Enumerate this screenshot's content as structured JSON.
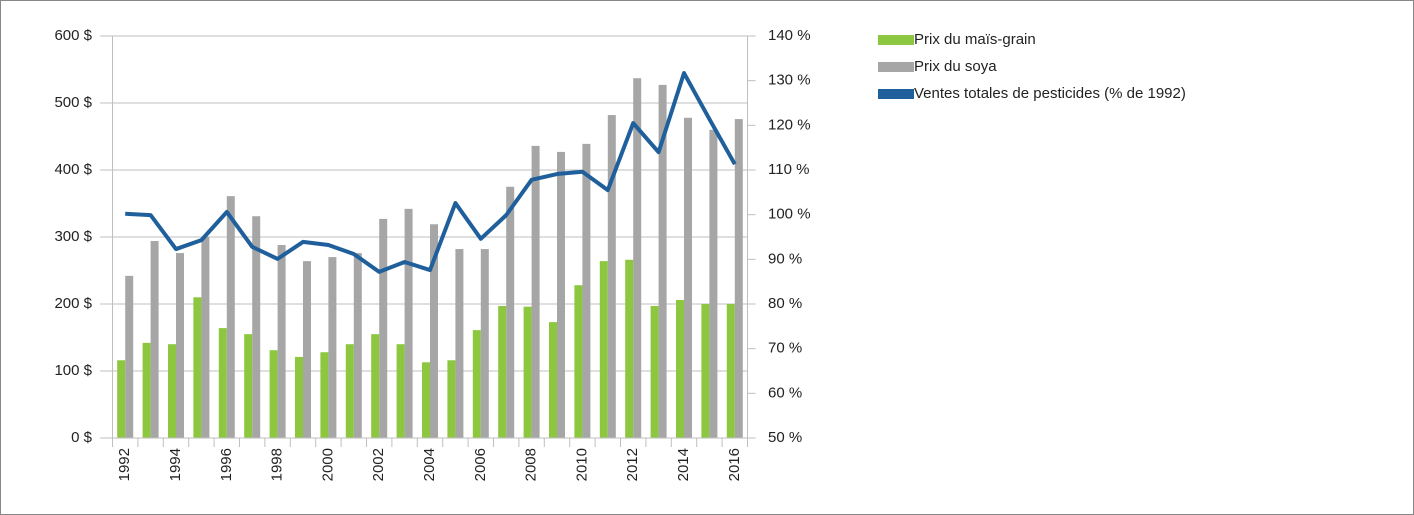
{
  "chart_data": {
    "type": "bar",
    "categories": [
      "1992",
      null,
      "1994",
      null,
      "1996",
      null,
      "1998",
      null,
      "2000",
      null,
      "2002",
      null,
      "2004",
      null,
      "2006",
      null,
      "2008",
      null,
      "2010",
      null,
      "2012",
      null,
      "2014",
      null,
      "2016"
    ],
    "series": [
      {
        "name": "Prix du maïs-grain",
        "color": "#8dc63f",
        "type": "bar",
        "values": [
          116,
          142,
          140,
          210,
          164,
          155,
          131,
          121,
          128,
          140,
          155,
          140,
          113,
          116,
          161,
          197,
          196,
          173,
          228,
          264,
          266,
          197,
          206,
          200,
          200
        ]
      },
      {
        "name": "Prix du soya",
        "color": "#a6a6a6",
        "type": "bar",
        "values": [
          242,
          294,
          276,
          300,
          361,
          331,
          288,
          264,
          270,
          276,
          327,
          342,
          319,
          282,
          282,
          375,
          436,
          427,
          439,
          482,
          537,
          527,
          478,
          460,
          476
        ]
      },
      {
        "name": "Ventes totales de pesticides (% de 1992)",
        "color": "#1f5f9b",
        "type": "line",
        "axis": "y2",
        "values": [
          100.2,
          99.9,
          92.3,
          94.3,
          100.6,
          92.8,
          90.1,
          93.9,
          93.2,
          91.2,
          87.2,
          89.4,
          87.6,
          102.6,
          94.6,
          99.9,
          107.8,
          109.1,
          109.6,
          105.5,
          120.5,
          114.0,
          131.7,
          121.4,
          111.3
        ]
      }
    ],
    "ylim": [
      0,
      600
    ],
    "yticks": [
      {
        "value": 0,
        "label": "0 $"
      },
      {
        "value": 100,
        "label": "100 $"
      },
      {
        "value": 200,
        "label": "200 $"
      },
      {
        "value": 300,
        "label": "300 $"
      },
      {
        "value": 400,
        "label": "400 $"
      },
      {
        "value": 500,
        "label": "500 $"
      },
      {
        "value": 600,
        "label": "600 $"
      }
    ],
    "y2lim": [
      50,
      140
    ],
    "y2ticks": [
      {
        "value": 50,
        "label": "50 %"
      },
      {
        "value": 60,
        "label": "60 %"
      },
      {
        "value": 70,
        "label": "70 %"
      },
      {
        "value": 80,
        "label": "80 %"
      },
      {
        "value": 90,
        "label": "90 %"
      },
      {
        "value": 100,
        "label": "100 %"
      },
      {
        "value": 110,
        "label": "110 %"
      },
      {
        "value": 120,
        "label": "120 %"
      },
      {
        "value": 130,
        "label": "130 %"
      },
      {
        "value": 140,
        "label": "140 %"
      }
    ],
    "grid": true,
    "legend": "right"
  }
}
